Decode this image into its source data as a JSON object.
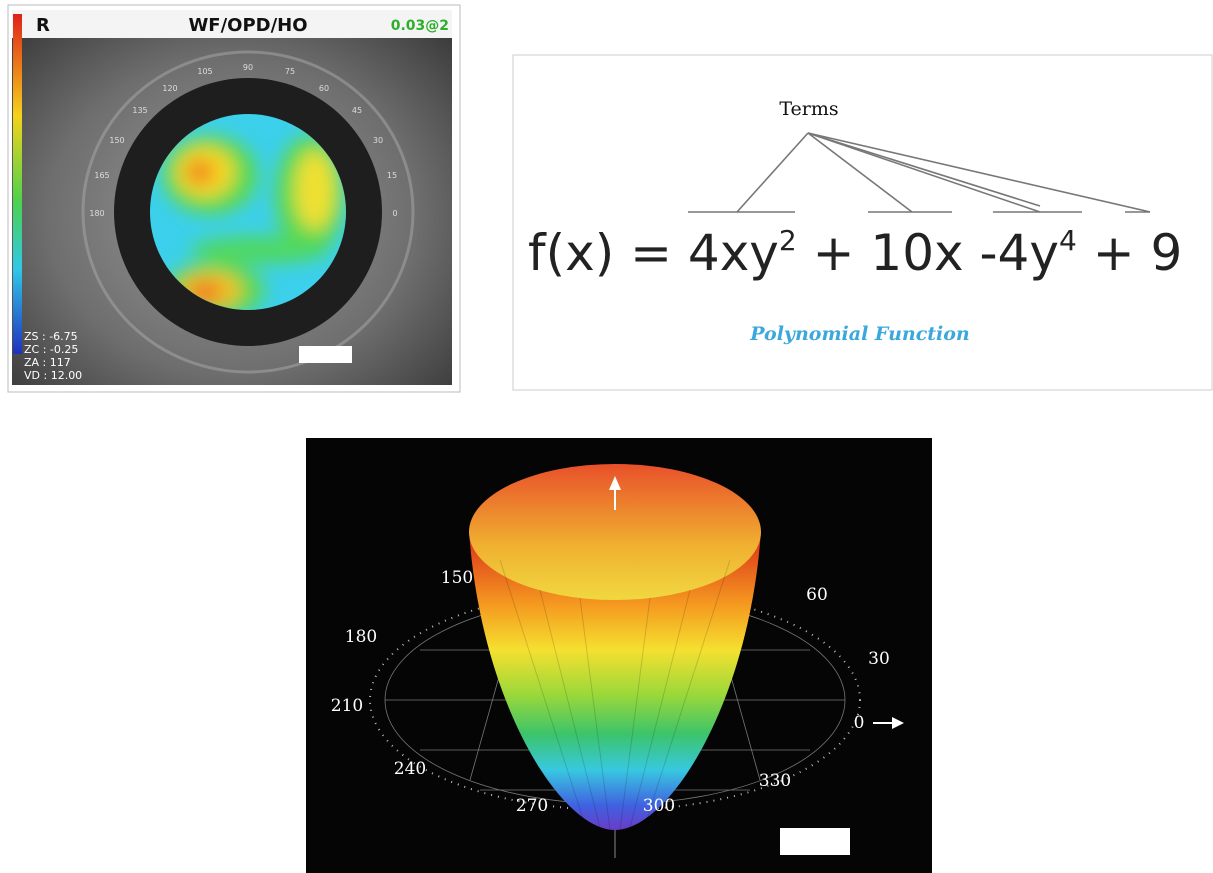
{
  "wavefront_map": {
    "eye": "R",
    "title": "WF/OPD/HO",
    "value": "0.03@2",
    "angle_labels": [
      "105",
      "90",
      "75",
      "120",
      "60",
      "135",
      "45",
      "150",
      "30",
      "165",
      "15",
      "180",
      "0"
    ],
    "readouts": [
      "ZS : -6.75",
      "ZC : -0.25",
      "ZA : 117",
      "VD : 12.00"
    ]
  },
  "polynomial": {
    "terms_label": "Terms",
    "formula": [
      "f(x) = ",
      "4xy",
      "2",
      " + ",
      "10x",
      " -4y",
      "4",
      " + 9"
    ],
    "caption": "Polynomial Function"
  },
  "surface_plot": {
    "angle_labels": [
      "150",
      "60",
      "180",
      "30",
      "210",
      "0",
      "240",
      "330",
      "270",
      "300"
    ]
  }
}
